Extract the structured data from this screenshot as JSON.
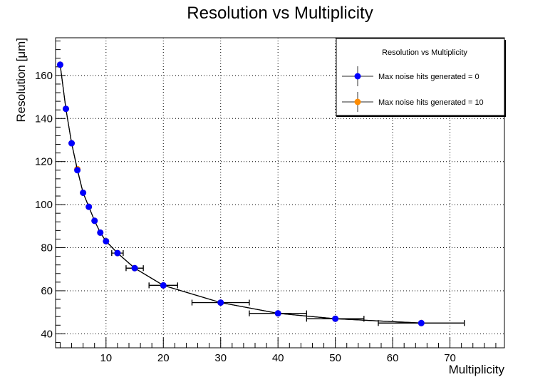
{
  "chart_data": {
    "type": "scatter",
    "title": "Resolution vs Multiplicity",
    "xlabel": "Multiplicity",
    "ylabel": "Resolution [μm]",
    "xlim": [
      1.2,
      79.5
    ],
    "ylim": [
      33.5,
      177.5
    ],
    "xticks": [
      10,
      20,
      30,
      40,
      50,
      60,
      70
    ],
    "yticks": [
      40,
      60,
      80,
      100,
      120,
      140,
      160
    ],
    "grid": true,
    "legend": {
      "title": "Resolution vs Multiplicity",
      "placement": "top-right"
    },
    "series": [
      {
        "name": "Max noise hits generated = 0",
        "color": "#0000ff",
        "x": [
          2,
          3,
          4,
          5,
          6,
          7,
          8,
          9,
          10,
          12,
          15,
          20,
          30,
          40,
          50,
          65
        ],
        "xerr": [
          0,
          0,
          0,
          0,
          0,
          0,
          0,
          0,
          0,
          1,
          1.5,
          2.5,
          5,
          5,
          5,
          7.5
        ],
        "y": [
          165,
          144.5,
          128.5,
          116,
          105.5,
          99,
          92.5,
          87,
          83,
          77.5,
          70.5,
          62.5,
          54.5,
          49.5,
          47,
          45
        ]
      },
      {
        "name": "Max noise hits generated = 10",
        "color": "#ff8c00",
        "x": [
          2,
          3,
          4,
          5,
          6,
          7,
          8,
          9,
          10,
          12,
          15,
          20,
          30,
          40,
          50,
          65
        ],
        "xerr": [
          0,
          0,
          0,
          0,
          0,
          0,
          0,
          0,
          0,
          1,
          1.5,
          2.5,
          5,
          5,
          5,
          7.5
        ],
        "y": [
          165,
          144.5,
          128.5,
          116.5,
          105.5,
          99,
          92.5,
          87,
          83,
          77.5,
          70.5,
          62.5,
          54.5,
          49.5,
          47,
          45
        ]
      }
    ]
  }
}
